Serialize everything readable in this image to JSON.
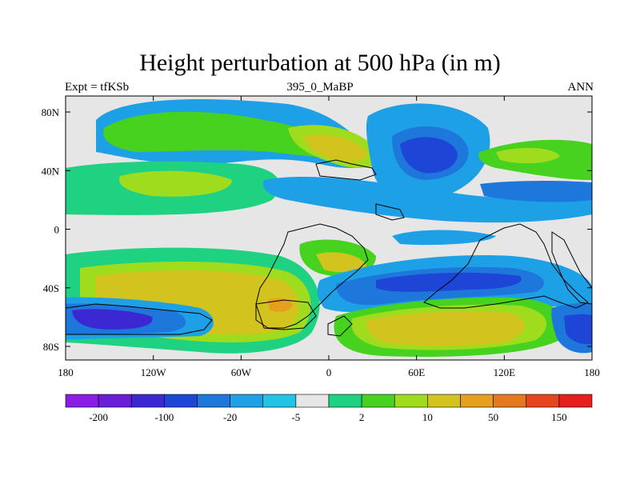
{
  "header": {
    "title": "Height perturbation at 500 hPa (in m)",
    "left_label": "Expt = tfKSb",
    "center_label": "395_0_MaBP",
    "right_label": "ANN"
  },
  "chart_data": {
    "type": "heatmap",
    "title": "Height perturbation at 500 hPa (in m)",
    "x_ticks": [
      "180",
      "120W",
      "60W",
      "0",
      "60E",
      "120E",
      "180"
    ],
    "y_ticks": [
      "80N",
      "40N",
      "0",
      "40S",
      "80S"
    ],
    "xlim": [
      -180,
      180
    ],
    "ylim": [
      -90,
      90
    ],
    "colorbar": {
      "labels": [
        "-200",
        "-100",
        "-20",
        "-5",
        "2",
        "10",
        "50",
        "150"
      ],
      "colors": [
        "#8a1ee6",
        "#6a1ed6",
        "#3c28d2",
        "#1e46d6",
        "#1e78dc",
        "#1ea0e6",
        "#22c3e6",
        "#e6e6e6",
        "#1ed282",
        "#46d21e",
        "#a0dc1e",
        "#d2c31e",
        "#e6a01e",
        "#e6781e",
        "#e6461e",
        "#e61e1e"
      ]
    }
  }
}
